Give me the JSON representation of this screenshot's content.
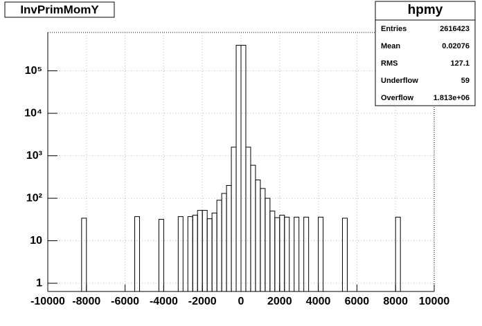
{
  "chart_data": {
    "type": "histogram",
    "title": "InvPrimMomY",
    "bins": [
      -10000,
      -9750,
      -9500,
      -9250,
      -9000,
      -8750,
      -8500,
      -8250,
      -8000,
      -7750,
      -7500,
      -7250,
      -7000,
      -6750,
      -6500,
      -6250,
      -6000,
      -5750,
      -5500,
      -5250,
      -5000,
      -4750,
      -4500,
      -4250,
      -4000,
      -3750,
      -3500,
      -3250,
      -3000,
      -2750,
      -2500,
      -2250,
      -2000,
      -1750,
      -1500,
      -1250,
      -1000,
      -750,
      -500,
      -250,
      0,
      250,
      500,
      750,
      1000,
      1250,
      1500,
      1750,
      2000,
      2250,
      2500,
      2750,
      3000,
      3250,
      3500,
      3750,
      4000,
      4250,
      4500,
      4750,
      5000,
      5250,
      5500,
      5750,
      6000,
      6250,
      6500,
      6750,
      7000,
      7250,
      7500,
      7750,
      8000,
      8250,
      8500,
      8750,
      9000,
      9250,
      9500,
      9750,
      10000
    ],
    "values": [
      0,
      0,
      0,
      0,
      0,
      0,
      0,
      34,
      0,
      0,
      0,
      0,
      0,
      0,
      0,
      0,
      0,
      0,
      37,
      0,
      0,
      0,
      0,
      32,
      0,
      0,
      0,
      37,
      0,
      37,
      40,
      52,
      52,
      33,
      45,
      90,
      130,
      200,
      1600,
      400000,
      400000,
      1600,
      600,
      270,
      170,
      100,
      50,
      35,
      40,
      36,
      0,
      36,
      0,
      36,
      0,
      0,
      36,
      0,
      0,
      0,
      0,
      34,
      0,
      0,
      0,
      0,
      0,
      0,
      0,
      0,
      0,
      0,
      36,
      0,
      0,
      0,
      0,
      0,
      0,
      0
    ],
    "color": "#000000",
    "log_y": true,
    "grid": true,
    "xlim": [
      -10000,
      10000
    ],
    "xticks": [
      -10000,
      -8000,
      -6000,
      -4000,
      -2000,
      0,
      2000,
      4000,
      6000,
      8000,
      10000
    ],
    "ylim": [
      0.64,
      800000
    ],
    "yticks": [
      1,
      10,
      {
        "value": 100,
        "label": "10²"
      },
      {
        "value": 1000,
        "label": "10³"
      },
      {
        "value": 10000,
        "label": "10⁴"
      },
      {
        "value": 100000,
        "label": "10⁵"
      }
    ],
    "stats": {
      "title": "hpmy",
      "rows": [
        [
          "Entries",
          "2616423"
        ],
        [
          "Mean",
          "0.02076"
        ],
        [
          "RMS",
          "127.1"
        ],
        [
          "Underflow",
          "59"
        ],
        [
          "Overflow",
          "1.813e+06"
        ]
      ]
    }
  }
}
